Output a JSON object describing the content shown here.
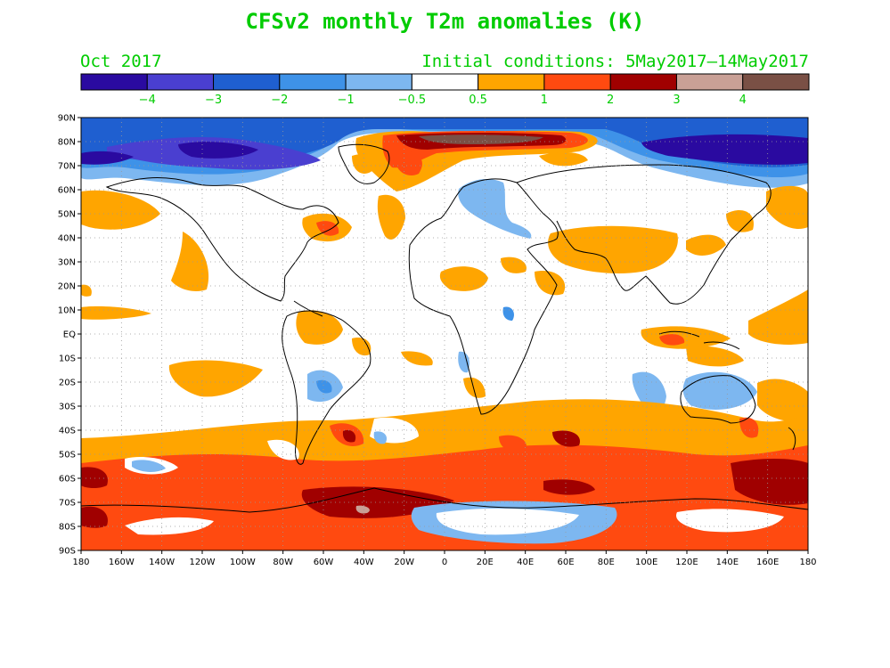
{
  "title": "CFSv2 monthly T2m anomalies (K)",
  "month_label": "Oct 2017",
  "initial_conditions": "Initial conditions: 5May2017–14May2017",
  "colorbar": {
    "colors": [
      "#2a0aa0",
      "#4a3fd0",
      "#1f5fd0",
      "#3e92e8",
      "#7db7f0",
      "#ffffff",
      "#ffa500",
      "#ff4a10",
      "#a00000",
      "#c9a096",
      "#7a5045"
    ],
    "labels": [
      "−4",
      "−3",
      "−2",
      "−1",
      "−0.5",
      "0.5",
      "1",
      "2",
      "3",
      "4"
    ]
  },
  "lat_labels": [
    "90N",
    "80N",
    "70N",
    "60N",
    "50N",
    "40N",
    "30N",
    "20N",
    "10N",
    "EQ",
    "10S",
    "20S",
    "30S",
    "40S",
    "50S",
    "60S",
    "70S",
    "80S",
    "90S"
  ],
  "lon_labels": [
    "180",
    "160W",
    "140W",
    "120W",
    "100W",
    "80W",
    "60W",
    "40W",
    "20W",
    "0",
    "20E",
    "40E",
    "60E",
    "80E",
    "100E",
    "120E",
    "140E",
    "160E",
    "180"
  ]
}
